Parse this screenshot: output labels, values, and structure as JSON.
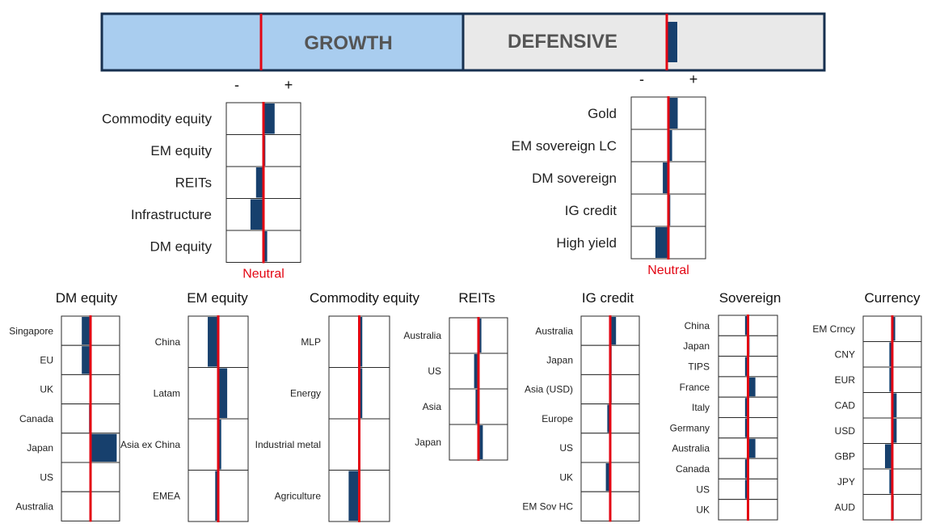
{
  "colors": {
    "growth_bg": "#a9cdef",
    "defensive_bg": "#e9e9e9",
    "border": "#17304f",
    "bar": "#17406d",
    "neutral": "#e30613",
    "text": "#2b2b2b",
    "title_text": "#555555"
  },
  "banner": {
    "growth_label": "GROWTH",
    "defensive_label": "DEFENSIVE",
    "growth_tilt": 0.0,
    "defensive_tilt": 0.12
  },
  "chart_data": [
    {
      "id": "growth",
      "type": "bar",
      "orientation": "horizontal-diverging",
      "minus_label": "-",
      "plus_label": "+",
      "neutral_label": "Neutral",
      "xlim": [
        -1,
        1
      ],
      "categories": [
        "Commodity equity",
        "EM equity",
        "REITs",
        "Infrastructure",
        "DM equity"
      ],
      "values": [
        0.3,
        0.05,
        -0.2,
        -0.35,
        0.1
      ]
    },
    {
      "id": "defensive",
      "type": "bar",
      "orientation": "horizontal-diverging",
      "minus_label": "-",
      "plus_label": "+",
      "neutral_label": "Neutral",
      "xlim": [
        -1,
        1
      ],
      "categories": [
        "Gold",
        "EM sovereign LC",
        "DM sovereign",
        "IG credit",
        "High yield"
      ],
      "values": [
        0.25,
        0.1,
        -0.15,
        0.05,
        -0.35
      ]
    },
    {
      "id": "dm_equity",
      "type": "bar",
      "title": "DM equity",
      "xlim": [
        -1,
        1
      ],
      "categories": [
        "Singapore",
        "EU",
        "UK",
        "Canada",
        "Japan",
        "US",
        "Australia"
      ],
      "values": [
        -0.3,
        -0.3,
        0.0,
        -0.05,
        0.9,
        0.0,
        0.0
      ]
    },
    {
      "id": "em_equity",
      "type": "bar",
      "title": "EM equity",
      "xlim": [
        -1,
        1
      ],
      "categories": [
        "China",
        "Latam",
        "Asia ex China",
        "EMEA"
      ],
      "values": [
        -0.35,
        0.3,
        0.1,
        -0.1
      ]
    },
    {
      "id": "commodity_equity",
      "type": "bar",
      "title": "Commodity equity",
      "xlim": [
        -1,
        1
      ],
      "categories": [
        "MLP",
        "Energy",
        "Industrial metal",
        "Agriculture"
      ],
      "values": [
        0.1,
        0.1,
        0.0,
        -0.35
      ]
    },
    {
      "id": "reits",
      "type": "bar",
      "title": "REITs",
      "xlim": [
        -1,
        1
      ],
      "categories": [
        "Australia",
        "US",
        "Asia",
        "Japan"
      ],
      "values": [
        0.1,
        -0.15,
        -0.1,
        0.15
      ]
    },
    {
      "id": "ig_credit",
      "type": "bar",
      "title": "IG credit",
      "xlim": [
        -1,
        1
      ],
      "categories": [
        "Australia",
        "Japan",
        "Asia (USD)",
        "Europe",
        "US",
        "UK",
        "EM Sov HC"
      ],
      "values": [
        0.2,
        0.05,
        0.05,
        -0.1,
        0.0,
        -0.15,
        0.0
      ]
    },
    {
      "id": "sovereign",
      "type": "bar",
      "title": "Sovereign",
      "xlim": [
        -1,
        1
      ],
      "categories": [
        "China",
        "Japan",
        "TIPS",
        "France",
        "Italy",
        "Germany",
        "Australia",
        "Canada",
        "US",
        "UK"
      ],
      "values": [
        -0.1,
        0.05,
        -0.1,
        0.25,
        -0.1,
        -0.1,
        0.25,
        -0.1,
        -0.1,
        0.0
      ]
    },
    {
      "id": "currency",
      "type": "bar",
      "title": "Currency",
      "xlim": [
        -1,
        1
      ],
      "categories": [
        "EM Crncy",
        "CNY",
        "EUR",
        "CAD",
        "USD",
        "GBP",
        "JPY",
        "AUD"
      ],
      "values": [
        0.1,
        -0.1,
        -0.1,
        0.15,
        0.15,
        -0.25,
        -0.1,
        0.05
      ]
    }
  ]
}
